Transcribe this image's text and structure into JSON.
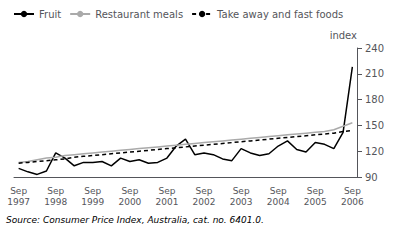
{
  "chart_data": {
    "type": "line",
    "ylabel": "index",
    "source": "Source: Consumer Price Index, Australia, cat. no. 6401.0.",
    "categories": [
      "Sep\n1997",
      null,
      null,
      null,
      "Sep\n1998",
      null,
      null,
      null,
      "Sep\n1999",
      null,
      null,
      null,
      "Sep\n2000",
      null,
      null,
      null,
      "Sep\n2001",
      null,
      null,
      null,
      "Sep\n2002",
      null,
      null,
      null,
      "Sep\n2003",
      null,
      null,
      null,
      "Sep\n2004",
      null,
      null,
      null,
      "Sep\n2005",
      null,
      null,
      null,
      "Sep\n2006"
    ],
    "series": [
      {
        "name": "Fruit",
        "color": "#000000",
        "line_style": "solid",
        "values": [
          100,
          96,
          93,
          97,
          118,
          112,
          103,
          107,
          107,
          108,
          103,
          112,
          108,
          110,
          106,
          107,
          112,
          126,
          134,
          116,
          118,
          116,
          111,
          109,
          123,
          118,
          115,
          117,
          126,
          132,
          122,
          119,
          130,
          128,
          123,
          142,
          218
        ]
      },
      {
        "name": "Restaurant meals",
        "color": "#aaaaaa",
        "line_style": "solid",
        "values": [
          107,
          108,
          110,
          112,
          113,
          115,
          116,
          117,
          118,
          119,
          120,
          121,
          122,
          123,
          124,
          125,
          126,
          127,
          128,
          129,
          130,
          131,
          132,
          133,
          134,
          135,
          136,
          137,
          138,
          139,
          140,
          141,
          142,
          143,
          145,
          149,
          153
        ]
      },
      {
        "name": "Take away and fast foods",
        "color": "#000000",
        "line_style": "dashed",
        "values": [
          106,
          107,
          108,
          109,
          110,
          111,
          113,
          114,
          115,
          116,
          117,
          118,
          119,
          120,
          121,
          122,
          123,
          124,
          125,
          126,
          127,
          128,
          129,
          130,
          131,
          132,
          133,
          134,
          135,
          136,
          137,
          138,
          139,
          140,
          141,
          143,
          144
        ]
      }
    ],
    "ylim": [
      90,
      240
    ],
    "yticks": [
      90,
      120,
      150,
      180,
      210,
      240
    ],
    "grid": false,
    "legend": "upper left"
  }
}
